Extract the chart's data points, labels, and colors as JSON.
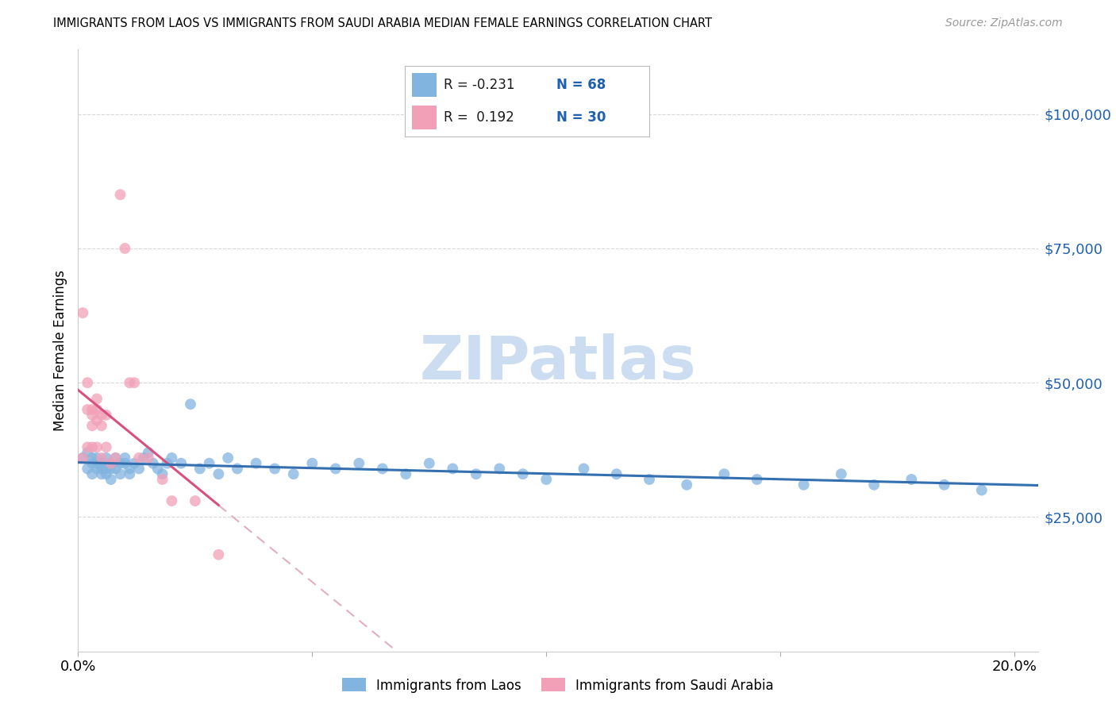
{
  "title": "IMMIGRANTS FROM LAOS VS IMMIGRANTS FROM SAUDI ARABIA MEDIAN FEMALE EARNINGS CORRELATION CHART",
  "source": "Source: ZipAtlas.com",
  "ylabel": "Median Female Earnings",
  "xlim": [
    0.0,
    0.205
  ],
  "ylim": [
    0,
    112000
  ],
  "yticks": [
    25000,
    50000,
    75000,
    100000
  ],
  "ytick_labels": [
    "$25,000",
    "$50,000",
    "$75,000",
    "$100,000"
  ],
  "xticks": [
    0.0,
    0.05,
    0.1,
    0.15,
    0.2
  ],
  "xtick_labels": [
    "0.0%",
    "",
    "",
    "",
    "20.0%"
  ],
  "laos_color": "#82b4e0",
  "saudi_color": "#f2a0b8",
  "laos_trend_color": "#3470b0",
  "saudi_trend_color": "#d95080",
  "saudi_dash_color": "#e0b0c0",
  "watermark": "ZIPatlas",
  "watermark_color": "#c5d8ef",
  "background": "#ffffff",
  "grid_color": "#d8d8d8",
  "laos_x": [
    0.001,
    0.002,
    0.002,
    0.003,
    0.003,
    0.003,
    0.004,
    0.004,
    0.004,
    0.005,
    0.005,
    0.005,
    0.006,
    0.006,
    0.006,
    0.007,
    0.007,
    0.007,
    0.008,
    0.008,
    0.009,
    0.009,
    0.01,
    0.01,
    0.011,
    0.011,
    0.012,
    0.013,
    0.014,
    0.015,
    0.016,
    0.017,
    0.018,
    0.019,
    0.02,
    0.022,
    0.024,
    0.026,
    0.028,
    0.03,
    0.032,
    0.034,
    0.038,
    0.042,
    0.046,
    0.05,
    0.055,
    0.06,
    0.065,
    0.07,
    0.075,
    0.08,
    0.085,
    0.09,
    0.095,
    0.1,
    0.108,
    0.115,
    0.122,
    0.13,
    0.138,
    0.145,
    0.155,
    0.163,
    0.17,
    0.178,
    0.185,
    0.193
  ],
  "laos_y": [
    36000,
    34000,
    37000,
    35000,
    33000,
    36000,
    34000,
    36000,
    35000,
    33000,
    35000,
    34000,
    36000,
    34000,
    33000,
    35000,
    34000,
    32000,
    34000,
    36000,
    35000,
    33000,
    35000,
    36000,
    34000,
    33000,
    35000,
    34000,
    36000,
    37000,
    35000,
    34000,
    33000,
    35000,
    36000,
    35000,
    46000,
    34000,
    35000,
    33000,
    36000,
    34000,
    35000,
    34000,
    33000,
    35000,
    34000,
    35000,
    34000,
    33000,
    35000,
    34000,
    33000,
    34000,
    33000,
    32000,
    34000,
    33000,
    32000,
    31000,
    33000,
    32000,
    31000,
    33000,
    31000,
    32000,
    31000,
    30000
  ],
  "saudi_x": [
    0.001,
    0.001,
    0.002,
    0.002,
    0.002,
    0.003,
    0.003,
    0.003,
    0.003,
    0.004,
    0.004,
    0.004,
    0.004,
    0.005,
    0.005,
    0.005,
    0.006,
    0.006,
    0.007,
    0.008,
    0.009,
    0.01,
    0.011,
    0.012,
    0.013,
    0.015,
    0.018,
    0.02,
    0.025,
    0.03
  ],
  "saudi_y": [
    36000,
    63000,
    38000,
    45000,
    50000,
    45000,
    42000,
    38000,
    44000,
    43000,
    47000,
    45000,
    38000,
    44000,
    42000,
    36000,
    44000,
    38000,
    35000,
    36000,
    85000,
    75000,
    50000,
    50000,
    36000,
    36000,
    32000,
    28000,
    28000,
    18000
  ]
}
